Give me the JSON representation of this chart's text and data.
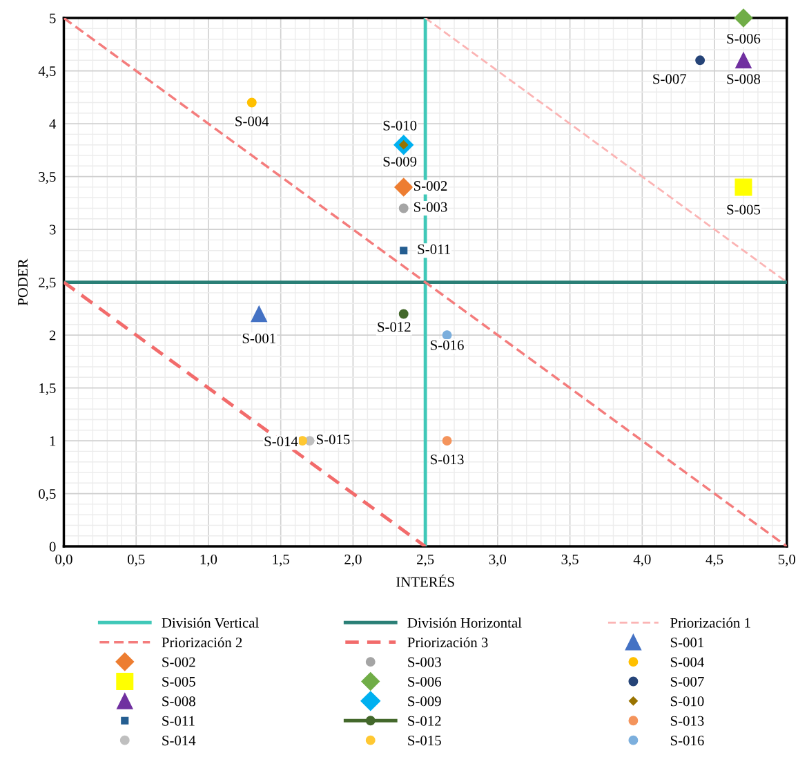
{
  "chart_data": {
    "type": "scatter",
    "xlabel": "INTERÉS",
    "ylabel": "PODER",
    "xlim": [
      0,
      5
    ],
    "ylim": [
      0,
      5
    ],
    "xticks": [
      {
        "value": 0,
        "label": "0,0"
      },
      {
        "value": 0.5,
        "label": "0,5"
      },
      {
        "value": 1,
        "label": "1,0"
      },
      {
        "value": 1.5,
        "label": "1,5"
      },
      {
        "value": 2,
        "label": "2,0"
      },
      {
        "value": 2.5,
        "label": "2,5"
      },
      {
        "value": 3,
        "label": "3,0"
      },
      {
        "value": 3.5,
        "label": "3,5"
      },
      {
        "value": 4,
        "label": "4,0"
      },
      {
        "value": 4.5,
        "label": "4,5"
      },
      {
        "value": 5,
        "label": "5,0"
      }
    ],
    "yticks": [
      0,
      {
        "value": 0.5,
        "label": "0,5"
      },
      1,
      {
        "value": 1.5,
        "label": "1,5"
      },
      2,
      {
        "value": 2.5,
        "label": "2,5"
      },
      3,
      {
        "value": 3.5,
        "label": "3,5"
      },
      4,
      {
        "value": 4.5,
        "label": "4,5"
      },
      5
    ],
    "grid": true,
    "legend": "bottom",
    "series": [
      {
        "name": "División Vertical",
        "type": "line",
        "color": "#40c8b8",
        "line_style": "solid",
        "x": [
          2.5,
          2.5
        ],
        "values": [
          0,
          5
        ]
      },
      {
        "name": "División Horizontal",
        "type": "line",
        "color": "#2a7f76",
        "line_style": "solid",
        "x": [
          0,
          5
        ],
        "values": [
          2.5,
          2.5
        ]
      },
      {
        "name": "Priorización 1",
        "type": "line",
        "color": "#fbb4b4",
        "line_style": "dashed",
        "x": [
          2.5,
          5
        ],
        "values": [
          5,
          2.5
        ]
      },
      {
        "name": "Priorización 2",
        "type": "line",
        "color": "#f47c7c",
        "line_style": "dashed",
        "x": [
          0,
          5
        ],
        "values": [
          5,
          0
        ]
      },
      {
        "name": "Priorización 3",
        "type": "line",
        "color": "#f26b6b",
        "line_style": "dashed",
        "x": [
          0,
          2.5
        ],
        "values": [
          2.5,
          0
        ]
      },
      {
        "name": "S-001",
        "marker": "triangle",
        "color": "#4472c4",
        "x": [
          1.35
        ],
        "values": [
          2.2
        ]
      },
      {
        "name": "S-002",
        "marker": "diamond",
        "color": "#ed7d31",
        "x": [
          2.35
        ],
        "values": [
          3.4
        ]
      },
      {
        "name": "S-003",
        "marker": "circle",
        "color": "#a5a5a5",
        "x": [
          2.35
        ],
        "values": [
          3.2
        ]
      },
      {
        "name": "S-004",
        "marker": "circle",
        "color": "#ffc000",
        "x": [
          1.3
        ],
        "values": [
          4.2
        ]
      },
      {
        "name": "S-005",
        "marker": "square",
        "color": "#ffff00",
        "x": [
          4.7
        ],
        "values": [
          3.4
        ]
      },
      {
        "name": "S-006",
        "marker": "diamond",
        "color": "#70ad47",
        "x": [
          4.7
        ],
        "values": [
          5.0
        ]
      },
      {
        "name": "S-007",
        "marker": "circle",
        "color": "#264478",
        "x": [
          4.4
        ],
        "values": [
          4.6
        ]
      },
      {
        "name": "S-008",
        "marker": "triangle",
        "color": "#7030a0",
        "x": [
          4.7
        ],
        "values": [
          4.6
        ]
      },
      {
        "name": "S-009",
        "marker": "diamond",
        "color": "#00b0f0",
        "x": [
          2.35
        ],
        "values": [
          3.8
        ]
      },
      {
        "name": "S-010",
        "marker": "diamond",
        "color": "#997300",
        "x": [
          2.35
        ],
        "values": [
          3.8
        ]
      },
      {
        "name": "S-011",
        "marker": "square",
        "color": "#255e91",
        "x": [
          2.35
        ],
        "values": [
          2.8
        ]
      },
      {
        "name": "S-012",
        "marker": "circle",
        "color": "#43682b",
        "x": [
          2.35
        ],
        "values": [
          2.2
        ]
      },
      {
        "name": "S-013",
        "marker": "circle",
        "color": "#f4945c",
        "x": [
          2.65
        ],
        "values": [
          1.0
        ]
      },
      {
        "name": "S-014",
        "marker": "circle",
        "color": "#bfbfbf",
        "x": [
          1.7
        ],
        "values": [
          1.0
        ]
      },
      {
        "name": "S-015",
        "marker": "circle",
        "color": "#ffc832",
        "x": [
          1.65
        ],
        "values": [
          1.0
        ]
      },
      {
        "name": "S-016",
        "marker": "circle",
        "color": "#7cafdd",
        "x": [
          2.65
        ],
        "values": [
          2.0
        ]
      }
    ]
  }
}
